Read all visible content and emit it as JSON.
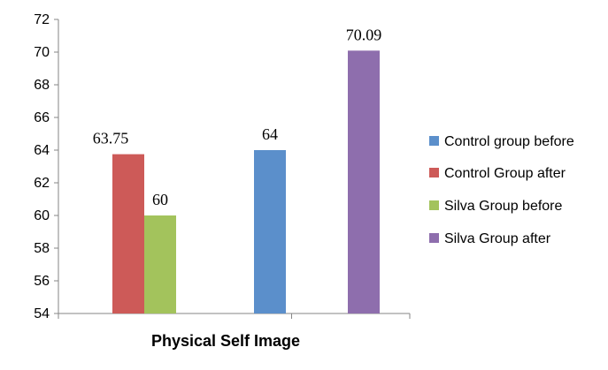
{
  "chart_data": {
    "type": "bar",
    "categories": [
      "Physical Self Image"
    ],
    "series": [
      {
        "name": "Control group before",
        "values": [
          64
        ],
        "color": "#5b8fcb",
        "data_label": "64"
      },
      {
        "name": "Control Group after",
        "values": [
          63.75
        ],
        "color": "#cd5a58",
        "data_label": "63.75"
      },
      {
        "name": "Silva Group before",
        "values": [
          60
        ],
        "color": "#a3c35c",
        "data_label": "60"
      },
      {
        "name": "Silva Group after",
        "values": [
          70.09
        ],
        "color": "#8e6ead",
        "data_label": "70.09"
      }
    ],
    "ylim": [
      54,
      72
    ],
    "yticks": [
      "54",
      "56",
      "58",
      "60",
      "62",
      "64",
      "66",
      "68",
      "70",
      "72"
    ],
    "grid": false,
    "legend_position": "right"
  }
}
